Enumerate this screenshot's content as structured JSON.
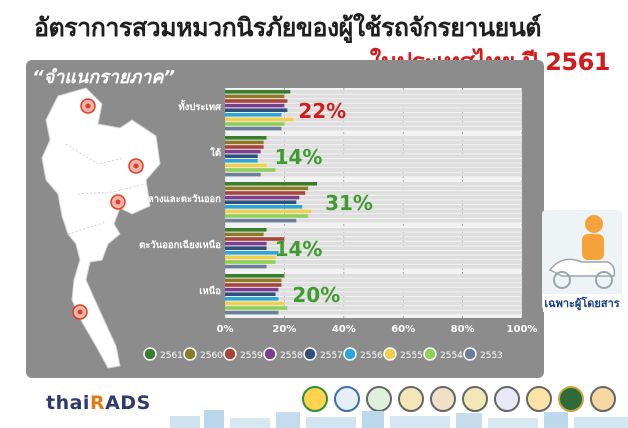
{
  "header": {
    "title_line1": "อัตราการสวมหมวกนิรภัยของผู้ใช้รถจักรยานยนต์",
    "title_line2": "ในประเทศไทย ปี 2561"
  },
  "panel": {
    "region_title": "“จำแนกรายภาค”"
  },
  "rider_card": {
    "label": "เฉพาะผู้โดยสาร"
  },
  "footer": {
    "logo_text_a": "thai",
    "logo_text_mark": "R",
    "logo_text_b": "ADS"
  },
  "colors": {
    "highlight_label": "#d01c1c",
    "value_label": "#3f9b2f",
    "panel": "#8c8c8c",
    "track": "#d9d9d9"
  },
  "chart_data": {
    "type": "bar",
    "orientation": "horizontal",
    "categories": [
      "ทั้งประเทศ",
      "ใต้",
      "กลางและตะวันออก",
      "ตะวันออกเฉียงเหนือ",
      "เหนือ"
    ],
    "highlight_labels": [
      "22%",
      "14%",
      "31%",
      "14%",
      "20%"
    ],
    "highlight_colors": [
      "#d01c1c",
      "#3f9b2f",
      "#3f9b2f",
      "#3f9b2f",
      "#3f9b2f"
    ],
    "xlim": [
      0,
      100
    ],
    "xticks": [
      "0%",
      "20%",
      "40%",
      "60%",
      "80%",
      "100%"
    ],
    "legend_position": "bottom",
    "series": [
      {
        "name": "2561",
        "color": "#3a7d2c",
        "values": [
          22,
          14,
          31,
          14,
          20
        ]
      },
      {
        "name": "2560",
        "color": "#8a7a2a",
        "values": [
          20,
          13,
          28,
          13,
          19
        ]
      },
      {
        "name": "2559",
        "color": "#a8443a",
        "values": [
          21,
          13,
          27,
          20,
          19
        ]
      },
      {
        "name": "2558",
        "color": "#7a3f8f",
        "values": [
          20,
          12,
          25,
          14,
          18
        ]
      },
      {
        "name": "2557",
        "color": "#33507a",
        "values": [
          21,
          11,
          24,
          14,
          17
        ]
      },
      {
        "name": "2556",
        "color": "#2aa7d8",
        "values": [
          19,
          11,
          26,
          18,
          18
        ]
      },
      {
        "name": "2555",
        "color": "#f0d04a",
        "values": [
          23,
          14,
          29,
          17,
          20
        ]
      },
      {
        "name": "2554",
        "color": "#8fcf5a",
        "values": [
          20,
          17,
          28,
          17,
          21
        ]
      },
      {
        "name": "2553",
        "color": "#6b7f99",
        "values": [
          19,
          12,
          24,
          14,
          18
        ]
      }
    ]
  }
}
